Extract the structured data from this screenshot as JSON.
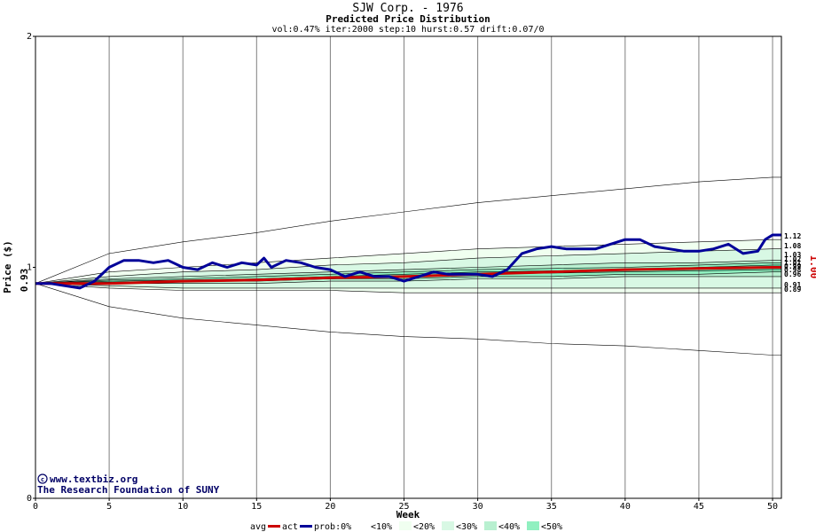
{
  "chart_data": {
    "type": "line",
    "title": "SJW Corp. - 1976",
    "subtitle": "Predicted Price Distribution",
    "params": "vol:0.47% iter:2000 step:10 hurst:0.57 drift:0.07/0",
    "xlabel": "Week",
    "ylabel": "Price ($)",
    "xlim": [
      0,
      50.6
    ],
    "ylim": [
      0,
      2
    ],
    "x_ticks": [
      0,
      5,
      10,
      15,
      20,
      25,
      30,
      35,
      40,
      45,
      50
    ],
    "y_ticks": [
      0,
      1,
      2
    ],
    "grid": true,
    "start_price_label": "0.93",
    "last_price_label": "1.00",
    "right_labels": [
      "1.12",
      "1.08",
      "1.03",
      "1.02",
      "1.01",
      "0.99",
      "0.98",
      "0.96",
      "0.91",
      "0.89"
    ],
    "band_colors": {
      "p0": "#ffffff",
      "p10": "#f0fff0",
      "p20": "#d8f8e4",
      "p30": "#b8f0d0",
      "p40": "#90f0c0",
      "p50": "#70e8b0"
    },
    "series": [
      {
        "name": "avg",
        "color": "#cc0000",
        "x": [
          0,
          5,
          10,
          15,
          20,
          25,
          30,
          35,
          40,
          45,
          50,
          50.6
        ],
        "y": [
          0.93,
          0.93,
          0.94,
          0.945,
          0.955,
          0.96,
          0.97,
          0.98,
          0.99,
          0.995,
          1.0,
          1.0
        ]
      },
      {
        "name": "act",
        "color": "#000099",
        "x": [
          0,
          1,
          2,
          3,
          4,
          5,
          6,
          7,
          8,
          9,
          10,
          11,
          12,
          13,
          14,
          15,
          15.5,
          16,
          17,
          18,
          19,
          20,
          21,
          22,
          23,
          24,
          25,
          26,
          27,
          28,
          29,
          30,
          31,
          32,
          33,
          34,
          35,
          36,
          37,
          38,
          39,
          40,
          41,
          42,
          43,
          44,
          45,
          46,
          47,
          48,
          49,
          49.5,
          50,
          50.6
        ],
        "y": [
          0.93,
          0.93,
          0.92,
          0.91,
          0.94,
          1.0,
          1.03,
          1.03,
          1.02,
          1.03,
          1.0,
          0.99,
          1.02,
          1.0,
          1.02,
          1.01,
          1.04,
          1.0,
          1.03,
          1.02,
          1.0,
          0.99,
          0.96,
          0.98,
          0.96,
          0.96,
          0.94,
          0.96,
          0.98,
          0.97,
          0.97,
          0.97,
          0.96,
          0.99,
          1.06,
          1.08,
          1.09,
          1.08,
          1.08,
          1.08,
          1.1,
          1.12,
          1.12,
          1.09,
          1.08,
          1.07,
          1.07,
          1.08,
          1.1,
          1.06,
          1.07,
          1.12,
          1.14,
          1.14
        ]
      },
      {
        "name": "p0_hi",
        "x": [
          0,
          5,
          10,
          15,
          20,
          25,
          30,
          35,
          40,
          45,
          50,
          50.6
        ],
        "y": [
          0.93,
          1.06,
          1.11,
          1.15,
          1.2,
          1.24,
          1.28,
          1.31,
          1.34,
          1.37,
          1.39,
          1.39
        ]
      },
      {
        "name": "p0_lo",
        "x": [
          0,
          5,
          10,
          15,
          20,
          25,
          30,
          35,
          40,
          45,
          50,
          50.6
        ],
        "y": [
          0.93,
          0.83,
          0.78,
          0.75,
          0.72,
          0.7,
          0.69,
          0.67,
          0.66,
          0.64,
          0.62,
          0.62
        ]
      },
      {
        "name": "p10_hi",
        "x": [
          0,
          5,
          10,
          15,
          20,
          25,
          30,
          35,
          40,
          45,
          50,
          50.6
        ],
        "y": [
          0.93,
          0.98,
          1.0,
          1.02,
          1.04,
          1.06,
          1.08,
          1.09,
          1.1,
          1.11,
          1.12,
          1.12
        ]
      },
      {
        "name": "p10_lo",
        "x": [
          0,
          5,
          10,
          15,
          20,
          25,
          30,
          35,
          40,
          45,
          50,
          50.6
        ],
        "y": [
          0.93,
          0.91,
          0.9,
          0.9,
          0.9,
          0.89,
          0.89,
          0.89,
          0.89,
          0.89,
          0.89,
          0.89
        ]
      },
      {
        "name": "p20_hi",
        "x": [
          0,
          5,
          10,
          15,
          20,
          25,
          30,
          35,
          40,
          45,
          50,
          50.6
        ],
        "y": [
          0.93,
          0.96,
          0.98,
          0.99,
          1.01,
          1.02,
          1.04,
          1.05,
          1.06,
          1.07,
          1.08,
          1.08
        ]
      },
      {
        "name": "p20_lo",
        "x": [
          0,
          5,
          10,
          15,
          20,
          25,
          30,
          35,
          40,
          45,
          50,
          50.6
        ],
        "y": [
          0.93,
          0.92,
          0.91,
          0.91,
          0.91,
          0.91,
          0.91,
          0.91,
          0.91,
          0.91,
          0.91,
          0.91
        ]
      },
      {
        "name": "p30_hi",
        "x": [
          0,
          5,
          10,
          15,
          20,
          25,
          30,
          35,
          40,
          45,
          50,
          50.6
        ],
        "y": [
          0.93,
          0.95,
          0.96,
          0.97,
          0.98,
          0.99,
          1.0,
          1.01,
          1.02,
          1.02,
          1.03,
          1.03
        ]
      },
      {
        "name": "p30_lo",
        "x": [
          0,
          5,
          10,
          15,
          20,
          25,
          30,
          35,
          40,
          45,
          50,
          50.6
        ],
        "y": [
          0.93,
          0.93,
          0.93,
          0.93,
          0.94,
          0.94,
          0.95,
          0.95,
          0.96,
          0.96,
          0.96,
          0.96
        ]
      },
      {
        "name": "p40_hi",
        "x": [
          0,
          5,
          10,
          15,
          20,
          25,
          30,
          35,
          40,
          45,
          50,
          50.6
        ],
        "y": [
          0.93,
          0.945,
          0.95,
          0.96,
          0.97,
          0.98,
          0.99,
          0.995,
          1.0,
          1.01,
          1.02,
          1.02
        ]
      },
      {
        "name": "p40_lo",
        "x": [
          0,
          5,
          10,
          15,
          20,
          25,
          30,
          35,
          40,
          45,
          50,
          50.6
        ],
        "y": [
          0.93,
          0.935,
          0.94,
          0.94,
          0.95,
          0.95,
          0.96,
          0.96,
          0.97,
          0.97,
          0.98,
          0.98
        ]
      },
      {
        "name": "p50_hi",
        "x": [
          0,
          5,
          10,
          15,
          20,
          25,
          30,
          35,
          40,
          45,
          50,
          50.6
        ],
        "y": [
          0.93,
          0.94,
          0.945,
          0.95,
          0.96,
          0.97,
          0.98,
          0.985,
          0.99,
          1.0,
          1.01,
          1.01
        ]
      },
      {
        "name": "p50_lo",
        "x": [
          0,
          5,
          10,
          15,
          20,
          25,
          30,
          35,
          40,
          45,
          50,
          50.6
        ],
        "y": [
          0.93,
          0.935,
          0.94,
          0.945,
          0.95,
          0.96,
          0.97,
          0.975,
          0.98,
          0.985,
          0.99,
          0.99
        ]
      }
    ]
  },
  "credit": {
    "site": "www.textbiz.org",
    "org": "The Research Foundation of SUNY"
  },
  "legend": {
    "avg": "avg",
    "act": "act",
    "prob": "prob:0%",
    "b10": "<10%",
    "b20": "<20%",
    "b30": "<30%",
    "b40": "<40%",
    "b50": "<50%"
  }
}
